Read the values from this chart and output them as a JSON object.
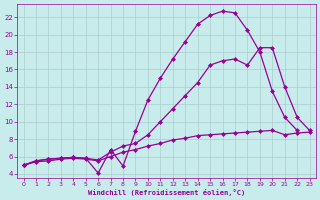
{
  "background_color": "#c8ecec",
  "plot_bg_color": "#c8ecec",
  "line_color": "#990099",
  "grid_color": "#aacccc",
  "xlabel": "Windchill (Refroidissement éolien,°C)",
  "xlim": [
    -0.5,
    23.5
  ],
  "ylim": [
    3.5,
    23.5
  ],
  "yticks": [
    4,
    6,
    8,
    10,
    12,
    14,
    16,
    18,
    20,
    22
  ],
  "xticks": [
    0,
    1,
    2,
    3,
    4,
    5,
    6,
    7,
    8,
    9,
    10,
    11,
    12,
    13,
    14,
    15,
    16,
    17,
    18,
    19,
    20,
    21,
    22,
    23
  ],
  "series1_x": [
    0,
    1,
    2,
    3,
    4,
    5,
    6,
    7,
    8,
    9,
    10,
    11,
    12,
    13,
    14,
    15,
    16,
    17,
    18,
    19,
    20,
    21,
    22
  ],
  "series1_y": [
    5.0,
    5.5,
    5.7,
    5.8,
    5.9,
    5.8,
    4.1,
    6.8,
    4.9,
    8.9,
    12.5,
    15.0,
    17.2,
    19.2,
    21.2,
    22.2,
    22.7,
    22.5,
    20.5,
    18.0,
    13.5,
    10.5,
    9.0
  ],
  "series2_x": [
    0,
    1,
    2,
    3,
    4,
    5,
    6,
    7,
    8,
    9,
    10,
    11,
    12,
    13,
    14,
    15,
    16,
    17,
    18,
    19,
    20,
    21,
    22,
    23
  ],
  "series2_y": [
    5.0,
    5.5,
    5.7,
    5.8,
    5.9,
    5.8,
    5.6,
    6.5,
    7.2,
    7.5,
    8.5,
    10.0,
    11.5,
    13.0,
    14.5,
    16.5,
    17.0,
    17.2,
    16.5,
    18.5,
    18.5,
    14.0,
    10.5,
    9.0
  ],
  "series3_x": [
    0,
    1,
    2,
    3,
    4,
    5,
    6,
    7,
    8,
    9,
    10,
    11,
    12,
    13,
    14,
    15,
    16,
    17,
    18,
    19,
    20,
    21,
    22,
    23
  ],
  "series3_y": [
    5.0,
    5.4,
    5.5,
    5.7,
    5.8,
    5.7,
    5.5,
    6.0,
    6.5,
    6.8,
    7.2,
    7.5,
    7.9,
    8.1,
    8.4,
    8.5,
    8.6,
    8.7,
    8.8,
    8.9,
    9.0,
    8.5,
    8.7,
    8.8
  ],
  "marker": "D",
  "marker_size": 2.0,
  "linewidth": 0.9
}
